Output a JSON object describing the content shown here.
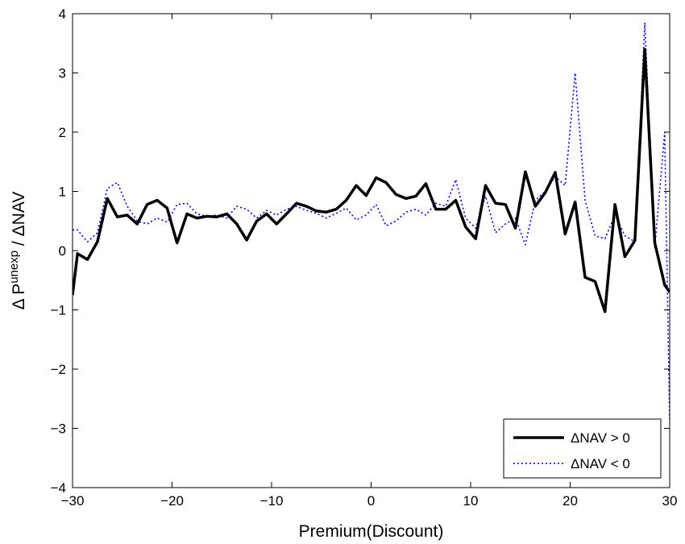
{
  "chart_data": {
    "type": "line",
    "xlabel": "Premium(Discount)",
    "ylabel": "Δ P",
    "ylabel_superscript": "unexp",
    "ylabel_suffix": " / ΔNAV",
    "xlim": [
      -30,
      30
    ],
    "ylim": [
      -4,
      4
    ],
    "xticks": [
      -30,
      -20,
      -10,
      0,
      10,
      20,
      30
    ],
    "yticks": [
      -4,
      -3,
      -2,
      -1,
      0,
      1,
      2,
      3,
      4
    ],
    "xtick_labels": [
      "−30",
      "−20",
      "−10",
      "0",
      "10",
      "20",
      "30"
    ],
    "ytick_labels": [
      "−4",
      "−3",
      "−2",
      "−1",
      "0",
      "1",
      "2",
      "3",
      "4"
    ],
    "grid": false,
    "legend_position": "bottom-right",
    "series": [
      {
        "name": "ΔNAV > 0",
        "color": "#000000",
        "style": "solid",
        "x": [
          -30,
          -29.5,
          -28.5,
          -27.5,
          -26.5,
          -25.5,
          -24.5,
          -23.5,
          -22.5,
          -21.5,
          -20.5,
          -19.5,
          -18.5,
          -17.5,
          -16.5,
          -15.5,
          -14.5,
          -13.5,
          -12.5,
          -11.5,
          -10.5,
          -9.5,
          -8.5,
          -7.5,
          -6.5,
          -5.5,
          -4.5,
          -3.5,
          -2.5,
          -1.5,
          -0.5,
          0.5,
          1.5,
          2.5,
          3.5,
          4.5,
          5.5,
          6.5,
          7.5,
          8.5,
          9.5,
          10.5,
          11.5,
          12.5,
          13.5,
          14.5,
          15.5,
          16.5,
          17.5,
          18.5,
          19.5,
          20.5,
          21.5,
          22.5,
          23.5,
          24.5,
          25.5,
          26.5,
          27.5,
          28.5,
          29.5,
          30
        ],
        "values": [
          -0.75,
          -0.05,
          -0.15,
          0.15,
          0.88,
          0.57,
          0.6,
          0.45,
          0.78,
          0.85,
          0.72,
          0.13,
          0.62,
          0.55,
          0.58,
          0.57,
          0.62,
          0.45,
          0.18,
          0.5,
          0.62,
          0.45,
          0.62,
          0.8,
          0.75,
          0.67,
          0.65,
          0.7,
          0.85,
          1.1,
          0.93,
          1.23,
          1.15,
          0.95,
          0.88,
          0.92,
          1.13,
          0.7,
          0.7,
          0.85,
          0.4,
          0.2,
          1.1,
          0.8,
          0.78,
          0.38,
          1.33,
          0.75,
          0.98,
          1.32,
          0.28,
          0.82,
          -0.45,
          -0.52,
          -1.03,
          0.78,
          -0.1,
          0.17,
          3.4,
          0.13,
          -0.58,
          -0.7
        ]
      },
      {
        "name": "ΔNAV < 0",
        "color": "#0000ee",
        "style": "dotted",
        "x": [
          -30,
          -29.5,
          -28.5,
          -27.5,
          -26.5,
          -25.5,
          -24.5,
          -23.5,
          -22.5,
          -21.5,
          -20.5,
          -19.5,
          -18.5,
          -17.5,
          -16.5,
          -15.5,
          -14.5,
          -13.5,
          -12.5,
          -11.5,
          -10.5,
          -9.5,
          -8.5,
          -7.5,
          -6.5,
          -5.5,
          -4.5,
          -3.5,
          -2.5,
          -1.5,
          -0.5,
          0.5,
          1.5,
          2.5,
          3.5,
          4.5,
          5.5,
          6.5,
          7.5,
          8.5,
          9.5,
          10.5,
          11.5,
          12.5,
          13.5,
          14.5,
          15.5,
          16.5,
          17.5,
          18.5,
          19.5,
          20.5,
          21.5,
          22.5,
          23.5,
          24.5,
          25.5,
          26.5,
          27.5,
          28.5,
          29.5,
          30
        ],
        "values": [
          0.35,
          0.35,
          0.15,
          0.3,
          1.05,
          1.15,
          0.75,
          0.5,
          0.45,
          0.55,
          0.48,
          0.78,
          0.8,
          0.62,
          0.58,
          0.6,
          0.55,
          0.75,
          0.7,
          0.55,
          0.68,
          0.6,
          0.7,
          0.75,
          0.68,
          0.63,
          0.55,
          0.63,
          0.72,
          0.52,
          0.6,
          0.78,
          0.42,
          0.5,
          0.65,
          0.7,
          0.6,
          0.8,
          0.75,
          1.2,
          0.55,
          0.38,
          0.92,
          0.3,
          0.45,
          0.55,
          0.1,
          0.85,
          1.0,
          1.25,
          1.1,
          3.0,
          0.85,
          0.25,
          0.2,
          0.6,
          0.25,
          0.15,
          3.85,
          0.05,
          2.0,
          -2.9
        ]
      }
    ]
  }
}
